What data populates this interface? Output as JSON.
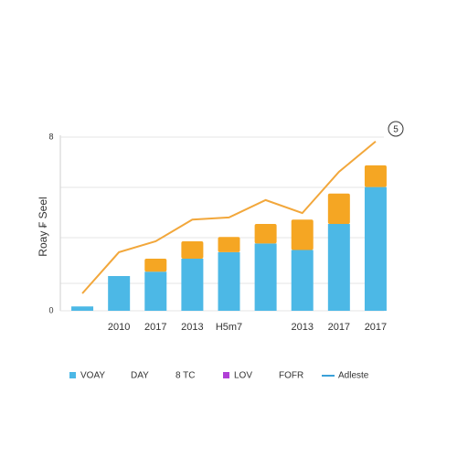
{
  "chart_data": {
    "type": "stacked-bar-line",
    "y_label": "Roay ₣ Seel",
    "annotation": "5",
    "categories": [
      null,
      "2010",
      "2017",
      "2013",
      "H5m7",
      null,
      "2013",
      "2017",
      "2017"
    ],
    "series": [
      {
        "kind": "bar",
        "color": "#4cb8e6",
        "values": [
          0.2,
          1.6,
          1.8,
          2.4,
          2.7,
          3.1,
          2.8,
          4.0,
          5.7
        ]
      },
      {
        "kind": "bar",
        "color": "#f5a623",
        "values": [
          null,
          null,
          0.6,
          0.8,
          0.7,
          0.9,
          1.4,
          1.4,
          1.0
        ]
      },
      {
        "kind": "line",
        "color": "#f2a73b",
        "values": [
          0.8,
          2.7,
          3.2,
          4.2,
          4.3,
          5.1,
          4.5,
          6.4,
          7.8
        ]
      }
    ],
    "ylim": [
      0,
      8
    ],
    "yticks": [
      0,
      8
    ],
    "grid": true,
    "legend": [
      {
        "label": "VOAY",
        "marker": "square",
        "color": "#4cb8e6"
      },
      {
        "label": "DAY",
        "marker": "none"
      },
      {
        "label": "8 TC",
        "marker": "none"
      },
      {
        "label": "LOV",
        "marker": "square",
        "color": "#b03fd6"
      },
      {
        "label": "FOFR",
        "marker": "none"
      },
      {
        "label": "Adleste",
        "marker": "line",
        "color": "#3aa0d8"
      }
    ]
  }
}
